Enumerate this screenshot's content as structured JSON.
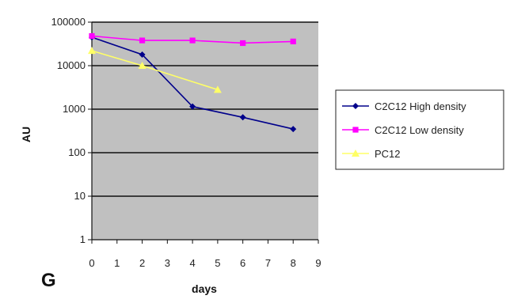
{
  "panel_label": "G",
  "chart_data": {
    "type": "line",
    "xlabel": "days",
    "ylabel": "AU",
    "xlim": [
      0,
      9
    ],
    "ylim": [
      1,
      100000
    ],
    "yscale": "log",
    "x_ticks": [
      "0",
      "1",
      "2",
      "3",
      "4",
      "5",
      "6",
      "7",
      "8",
      "9"
    ],
    "y_ticks": [
      "1",
      "10",
      "100",
      "1000",
      "10000",
      "100000"
    ],
    "grid": "horizontal",
    "plot_background": "#c0c0c0",
    "legend_position": "right",
    "series": [
      {
        "name": "C2C12 High density",
        "color": "#00008b",
        "marker": "diamond",
        "x": [
          0,
          2,
          4,
          6,
          8
        ],
        "y": [
          45000,
          18000,
          1150,
          650,
          350
        ]
      },
      {
        "name": "C2C12 Low density",
        "color": "#ff00ff",
        "marker": "square",
        "x": [
          0,
          2,
          4,
          6,
          8
        ],
        "y": [
          48000,
          38000,
          38000,
          33000,
          36000
        ]
      },
      {
        "name": "PC12",
        "color": "#ffff66",
        "marker": "triangle",
        "x": [
          0,
          2,
          5
        ],
        "y": [
          22000,
          10000,
          2800
        ]
      }
    ]
  }
}
